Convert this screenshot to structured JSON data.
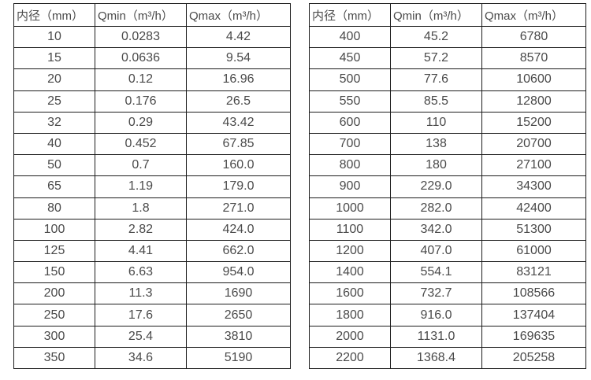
{
  "page": {
    "background_color": "#ffffff",
    "border_color": "#1c1c1c",
    "text_color": "#4a4a4a"
  },
  "tables": [
    {
      "name": "flow-rate-table-small-diameters",
      "headers": [
        "内径（mm）",
        "Qmin（m³/h）",
        "Qmax（m³/h）"
      ],
      "rows": [
        [
          "10",
          "0.0283",
          "4.42"
        ],
        [
          "15",
          "0.0636",
          "9.54"
        ],
        [
          "20",
          "0.12",
          "16.96"
        ],
        [
          "25",
          "0.176",
          "26.5"
        ],
        [
          "32",
          "0.29",
          "43.42"
        ],
        [
          "40",
          "0.452",
          "67.85"
        ],
        [
          "50",
          "0.7",
          "160.0"
        ],
        [
          "65",
          "1.19",
          "179.0"
        ],
        [
          "80",
          "1.8",
          "271.0"
        ],
        [
          "100",
          "2.82",
          "424.0"
        ],
        [
          "125",
          "4.41",
          "662.0"
        ],
        [
          "150",
          "6.63",
          "954.0"
        ],
        [
          "200",
          "11.3",
          "1690"
        ],
        [
          "250",
          "17.6",
          "2650"
        ],
        [
          "300",
          "25.4",
          "3810"
        ],
        [
          "350",
          "34.6",
          "5190"
        ]
      ]
    },
    {
      "name": "flow-rate-table-large-diameters",
      "headers": [
        "内径（mm）",
        "Qmin（m³/h）",
        "Qmax（m³/h）"
      ],
      "rows": [
        [
          "400",
          "45.2",
          "6780"
        ],
        [
          "450",
          "57.2",
          "8570"
        ],
        [
          "500",
          "77.6",
          "10600"
        ],
        [
          "550",
          "85.5",
          "12800"
        ],
        [
          "600",
          "110",
          "15200"
        ],
        [
          "700",
          "138",
          "20700"
        ],
        [
          "800",
          "180",
          "27100"
        ],
        [
          "900",
          "229.0",
          "34300"
        ],
        [
          "1000",
          "282.0",
          "42400"
        ],
        [
          "1100",
          "342.0",
          "51300"
        ],
        [
          "1200",
          "407.0",
          "61000"
        ],
        [
          "1400",
          "554.1",
          "83121"
        ],
        [
          "1600",
          "732.7",
          "108566"
        ],
        [
          "1800",
          "916.0",
          "137404"
        ],
        [
          "2000",
          "1131.0",
          "169635"
        ],
        [
          "2200",
          "1368.4",
          "205258"
        ]
      ]
    }
  ]
}
